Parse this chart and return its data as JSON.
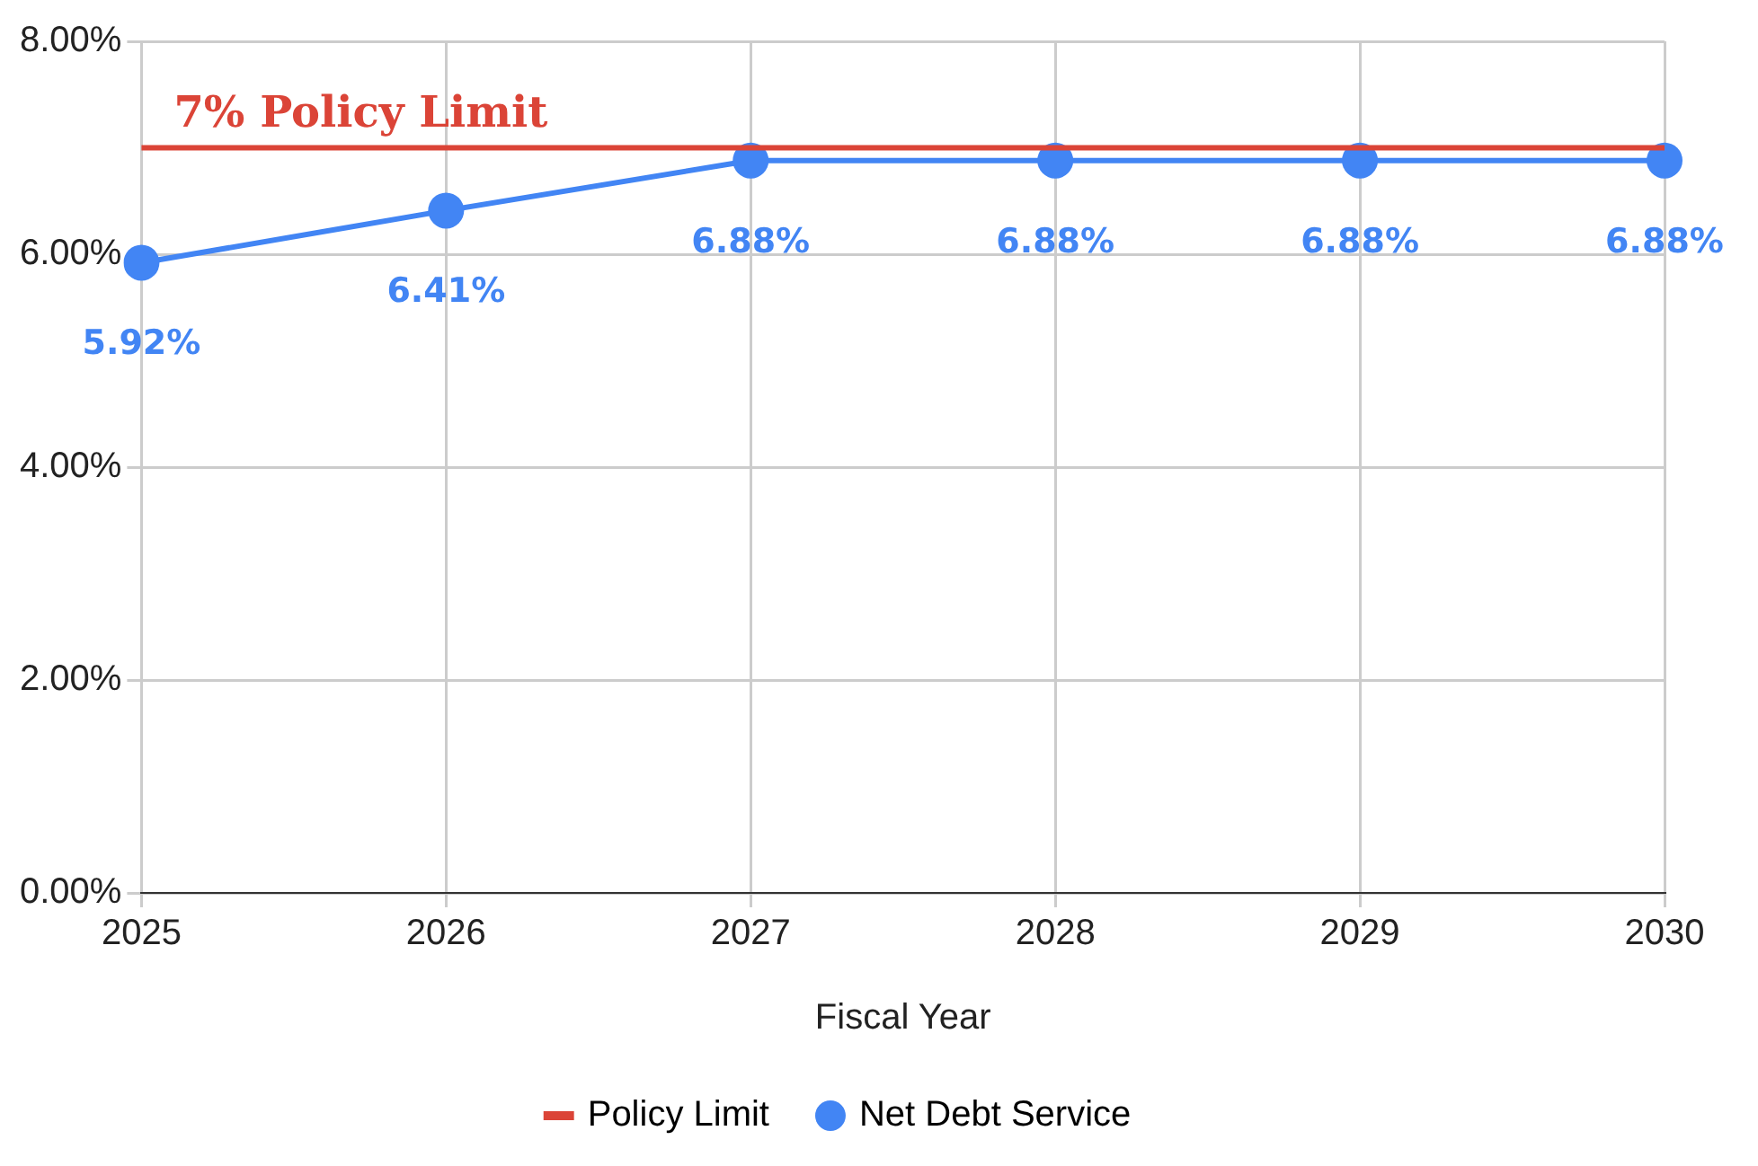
{
  "chart_data": {
    "type": "line",
    "xlabel": "Fiscal Year",
    "categories": [
      "2025",
      "2026",
      "2027",
      "2028",
      "2029",
      "2030"
    ],
    "series": [
      {
        "name": "Policy Limit",
        "color": "#db4437",
        "values": [
          7,
          7,
          7,
          7,
          7,
          7
        ],
        "marker": "none"
      },
      {
        "name": "Net Debt Service",
        "color": "#4285f4",
        "values": [
          5.92,
          6.41,
          6.88,
          6.88,
          6.88,
          6.88
        ],
        "marker": "circle",
        "value_labels": [
          "5.92%",
          "6.41%",
          "6.88%",
          "6.88%",
          "6.88%",
          "6.88%"
        ]
      }
    ],
    "ylim": [
      0,
      8
    ],
    "yticks": [
      {
        "value": 0,
        "label": "0.00%"
      },
      {
        "value": 2,
        "label": "2.00%"
      },
      {
        "value": 4,
        "label": "4.00%"
      },
      {
        "value": 6,
        "label": "6.00%"
      },
      {
        "value": 8,
        "label": "8.00%"
      }
    ],
    "grid": true,
    "legend": "bottom",
    "annotations": [
      {
        "text": "7% Policy Limit",
        "x": "2025",
        "y": 7
      }
    ]
  }
}
